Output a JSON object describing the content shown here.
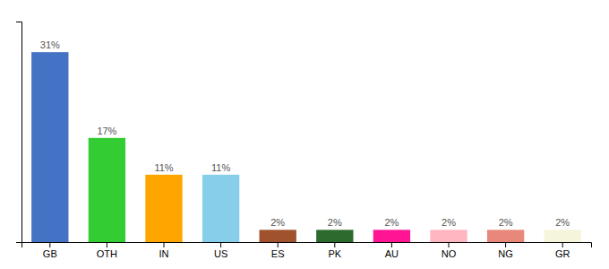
{
  "chart_data": {
    "type": "bar",
    "categories": [
      "GB",
      "OTH",
      "IN",
      "US",
      "ES",
      "PK",
      "AU",
      "NO",
      "NG",
      "GR"
    ],
    "values": [
      31,
      17,
      11,
      11,
      2,
      2,
      2,
      2,
      2,
      2
    ],
    "value_labels": [
      "31%",
      "17%",
      "11%",
      "11%",
      "2%",
      "2%",
      "2%",
      "2%",
      "2%",
      "2%"
    ],
    "colors": [
      "#4472C4",
      "#33CC33",
      "#FFA500",
      "#87CEEB",
      "#A0522D",
      "#2D6A2D",
      "#FF1493",
      "#FFB6C1",
      "#E8887A",
      "#F5F5DC"
    ],
    "ylim": [
      0,
      36
    ],
    "data_labels": true,
    "tick_labels": "x",
    "grid": false
  }
}
